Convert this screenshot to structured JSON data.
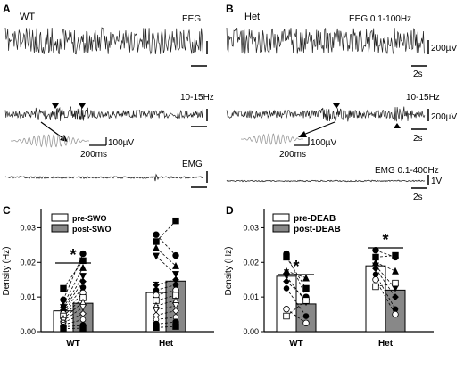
{
  "panels": {
    "A": {
      "letter": "A",
      "genotype": "WT",
      "eeg_label": "EEG",
      "filter_label": "10-15Hz",
      "inset_scale": "100µV",
      "inset_time": "200ms",
      "emg_label": "EMG"
    },
    "B": {
      "letter": "B",
      "genotype": "Het",
      "eeg_label": "EEG 0.1-100Hz",
      "eeg_scale": "200µV",
      "eeg_time": "2s",
      "filter_label": "10-15Hz",
      "filter_scale": "200µV",
      "filter_time": "2s",
      "inset_scale": "100µV",
      "inset_time": "200ms",
      "emg_label": "EMG 0.1-400Hz",
      "emg_scale": "1V",
      "emg_time": "2s"
    },
    "C": {
      "letter": "C"
    },
    "D": {
      "letter": "D"
    }
  },
  "chart_data": [
    {
      "type": "bar",
      "panel": "C",
      "ylabel": "Density (Hz)",
      "ylim": [
        0,
        0.035
      ],
      "yticks": [
        "0.00",
        "0.01",
        "0.02",
        "0.03"
      ],
      "categories": [
        "WT",
        "Het"
      ],
      "legend": [
        "pre-SWO",
        "post-SWO"
      ],
      "series": [
        {
          "name": "pre-SWO",
          "color": "#ffffff",
          "values": [
            0.006,
            0.0113
          ],
          "errors": [
            0.0013,
            0.003
          ]
        },
        {
          "name": "post-SWO",
          "color": "#888888",
          "values": [
            0.0082,
            0.0146
          ],
          "errors": [
            0.0018,
            0.0027
          ]
        }
      ],
      "pairs": [
        [
          [
            0.0092,
            0.0225
          ],
          [
            0.0125,
            0.0205
          ],
          [
            0.0078,
            0.0185
          ],
          [
            0.007,
            0.016
          ],
          [
            0.0063,
            0.0145
          ],
          [
            0.0058,
            0.0128
          ],
          [
            0.0052,
            0.0112
          ],
          [
            0.0045,
            0.0098
          ],
          [
            0.0038,
            0.0085
          ],
          [
            0.0032,
            0.007
          ],
          [
            0.0026,
            0.0052
          ],
          [
            0.002,
            0.0035
          ],
          [
            0.0014,
            0.0018
          ],
          [
            0.0009,
            0.001
          ]
        ],
        [
          [
            0.028,
            0.022
          ],
          [
            0.026,
            0.032
          ],
          [
            0.0242,
            0.019
          ],
          [
            0.0218,
            0.0165
          ],
          [
            0.0135,
            0.015
          ],
          [
            0.012,
            0.0135
          ],
          [
            0.0105,
            0.012
          ],
          [
            0.009,
            0.0105
          ],
          [
            0.0075,
            0.009
          ],
          [
            0.0062,
            0.0075
          ],
          [
            0.0048,
            0.006
          ],
          [
            0.0035,
            0.0042
          ],
          [
            0.0022,
            0.0028
          ],
          [
            0.0012,
            0.0015
          ]
        ]
      ],
      "significance": "*"
    },
    {
      "type": "bar",
      "panel": "D",
      "ylabel": "Density (Hz)",
      "ylim": [
        0,
        0.035
      ],
      "yticks": [
        "0.00",
        "0.01",
        "0.02",
        "0.03"
      ],
      "categories": [
        "WT",
        "Het"
      ],
      "legend": [
        "pre-DEAB",
        "post-DEAB"
      ],
      "series": [
        {
          "name": "pre-DEAB",
          "color": "#ffffff",
          "values": [
            0.016,
            0.019
          ],
          "errors": [
            0.0018,
            0.002
          ]
        },
        {
          "name": "post-DEAB",
          "color": "#888888",
          "values": [
            0.008,
            0.012
          ],
          "errors": [
            0.0018,
            0.0018
          ]
        }
      ],
      "pairs": [
        [
          [
            0.0225,
            0.01
          ],
          [
            0.0215,
            0.0125
          ],
          [
            0.0175,
            0.0155
          ],
          [
            0.016,
            0.0085
          ],
          [
            0.0145,
            0.0095
          ],
          [
            0.0125,
            0.0045
          ],
          [
            0.0065,
            0.0025
          ],
          [
            0.0045,
            0.009
          ]
        ],
        [
          [
            0.0235,
            0.0215
          ],
          [
            0.0215,
            0.022
          ],
          [
            0.02,
            0.0175
          ],
          [
            0.019,
            0.0125
          ],
          [
            0.0182,
            0.01
          ],
          [
            0.0165,
            0.0065
          ],
          [
            0.015,
            0.005
          ],
          [
            0.013,
            0.014
          ]
        ]
      ],
      "significance": "*"
    }
  ]
}
